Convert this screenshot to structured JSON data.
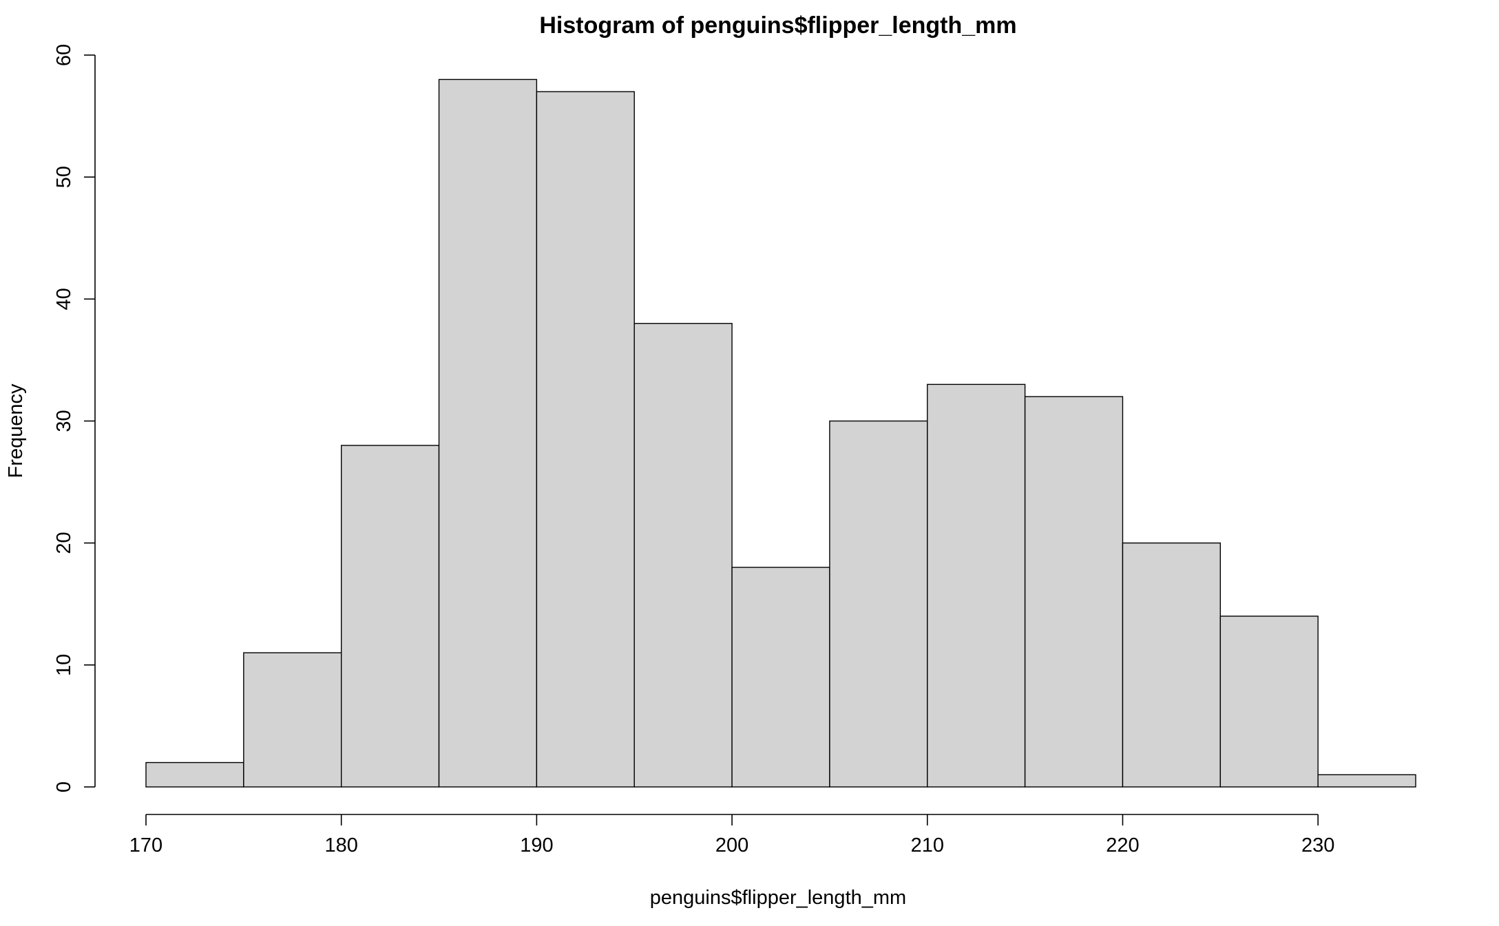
{
  "chart_data": {
    "type": "bar",
    "title": "Histogram of penguins$flipper_length_mm",
    "xlabel": "penguins$flipper_length_mm",
    "ylabel": "Frequency",
    "bins": [
      {
        "start": 170,
        "end": 175,
        "count": 2
      },
      {
        "start": 175,
        "end": 180,
        "count": 11
      },
      {
        "start": 180,
        "end": 185,
        "count": 28
      },
      {
        "start": 185,
        "end": 190,
        "count": 58
      },
      {
        "start": 190,
        "end": 195,
        "count": 57
      },
      {
        "start": 195,
        "end": 200,
        "count": 38
      },
      {
        "start": 200,
        "end": 205,
        "count": 18
      },
      {
        "start": 205,
        "end": 210,
        "count": 30
      },
      {
        "start": 210,
        "end": 215,
        "count": 33
      },
      {
        "start": 215,
        "end": 220,
        "count": 32
      },
      {
        "start": 220,
        "end": 225,
        "count": 20
      },
      {
        "start": 225,
        "end": 230,
        "count": 14
      },
      {
        "start": 230,
        "end": 235,
        "count": 1
      }
    ],
    "xlim": [
      170,
      235
    ],
    "ylim": [
      0,
      60
    ],
    "x_ticks": [
      170,
      180,
      190,
      200,
      210,
      220,
      230
    ],
    "y_ticks": [
      0,
      10,
      20,
      30,
      40,
      50,
      60
    ],
    "grid": false,
    "legend": "none",
    "bar_color": "#d3d3d3",
    "edge_color": "#000000"
  }
}
